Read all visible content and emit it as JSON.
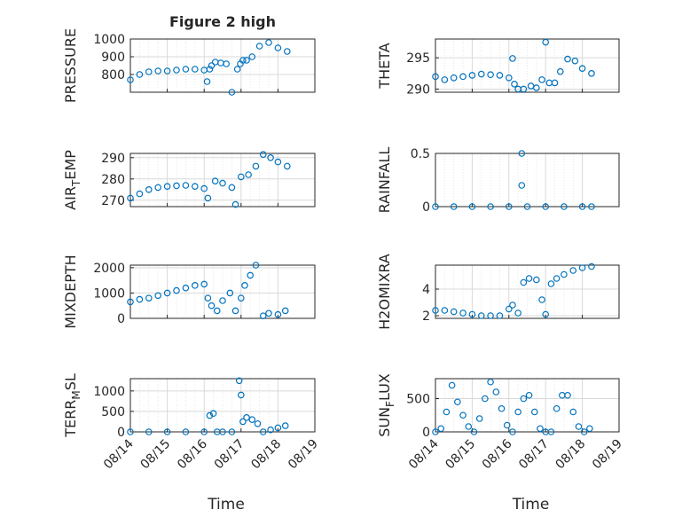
{
  "figure": {
    "title": "Figure 2 high",
    "marker_color": "#0072BD",
    "axis_color": "#262626",
    "grid_color": "#d9d9d9"
  },
  "x_axis": {
    "label": "Time",
    "ticks": [
      "08/14",
      "08/15",
      "08/16",
      "08/17",
      "08/18",
      "08/19"
    ],
    "range_days": [
      "08/14",
      "08/19"
    ]
  },
  "chart_data": [
    {
      "type": "scatter",
      "ylabel": "PRESSURE",
      "ylim": [
        700,
        1000
      ],
      "yticks": [
        800,
        900,
        1000
      ],
      "grid": true,
      "x_days_from_08_14": [
        0.0,
        0.25,
        0.5,
        0.75,
        1.0,
        1.25,
        1.5,
        1.75,
        2.0,
        2.08,
        2.15,
        2.2,
        2.3,
        2.45,
        2.6,
        2.75,
        2.9,
        2.98,
        3.05,
        3.15,
        3.3,
        3.5,
        3.75,
        4.0,
        4.25
      ],
      "y": [
        770,
        800,
        815,
        820,
        820,
        825,
        830,
        830,
        825,
        760,
        830,
        850,
        870,
        865,
        860,
        700,
        830,
        860,
        880,
        880,
        900,
        960,
        980,
        950,
        930
      ]
    },
    {
      "type": "scatter",
      "ylabel": "THETA",
      "ylim": [
        289.5,
        298
      ],
      "yticks": [
        290,
        295
      ],
      "grid": true,
      "x_days_from_08_14": [
        0.0,
        0.25,
        0.5,
        0.75,
        1.0,
        1.25,
        1.5,
        1.75,
        2.0,
        2.1,
        2.15,
        2.25,
        2.4,
        2.6,
        2.75,
        2.9,
        3.0,
        3.1,
        3.25,
        3.4,
        3.6,
        3.8,
        4.0,
        4.25
      ],
      "y": [
        292,
        291.5,
        291.8,
        292,
        292.2,
        292.4,
        292.3,
        292.2,
        291.8,
        294.9,
        290.8,
        290,
        290,
        290.5,
        290.2,
        291.5,
        297.5,
        291,
        291,
        292.8,
        294.8,
        294.5,
        293.3,
        292.5
      ]
    },
    {
      "type": "scatter",
      "ylabel": "AIR_TEMP",
      "ylim": [
        267,
        292
      ],
      "yticks": [
        270,
        280,
        290
      ],
      "grid": true,
      "x_days_from_08_14": [
        0.0,
        0.25,
        0.5,
        0.75,
        1.0,
        1.25,
        1.5,
        1.75,
        2.0,
        2.1,
        2.3,
        2.5,
        2.75,
        2.85,
        3.0,
        3.2,
        3.4,
        3.6,
        3.8,
        4.0,
        4.25
      ],
      "y": [
        271,
        273,
        275,
        276,
        276.5,
        276.8,
        277,
        276.5,
        275.5,
        271,
        279,
        278,
        276,
        268,
        281,
        282,
        286,
        291.5,
        290,
        288,
        286
      ]
    },
    {
      "type": "scatter",
      "ylabel": "RAINFALL",
      "ylim": [
        0,
        0.5
      ],
      "yticks": [
        0,
        0.5
      ],
      "grid": true,
      "x_days_from_08_14": [
        0.0,
        0.5,
        1.0,
        1.5,
        2.0,
        2.5,
        3.0,
        3.5,
        4.0,
        4.25,
        2.35,
        2.35
      ],
      "y": [
        0,
        0,
        0,
        0,
        0,
        0,
        0,
        0,
        0,
        0,
        0.5,
        0.2
      ]
    },
    {
      "type": "scatter",
      "ylabel": "MIXDEPTH",
      "ylim": [
        0,
        2100
      ],
      "yticks": [
        0,
        1000,
        2000
      ],
      "grid": true,
      "x_days_from_08_14": [
        0.0,
        0.25,
        0.5,
        0.75,
        1.0,
        1.25,
        1.5,
        1.75,
        2.0,
        2.1,
        2.2,
        2.35,
        2.5,
        2.7,
        2.85,
        3.0,
        3.1,
        3.25,
        3.4,
        3.6,
        3.75,
        4.0,
        4.2
      ],
      "y": [
        650,
        750,
        800,
        900,
        1000,
        1100,
        1200,
        1300,
        1350,
        800,
        500,
        300,
        700,
        1000,
        300,
        800,
        1300,
        1700,
        2100,
        100,
        200,
        150,
        300
      ]
    },
    {
      "type": "scatter",
      "ylabel": "H2OMIXRA",
      "ylim": [
        1.8,
        5.8
      ],
      "yticks": [
        2,
        4
      ],
      "grid": true,
      "x_days_from_08_14": [
        0.0,
        0.25,
        0.5,
        0.75,
        1.0,
        1.25,
        1.5,
        1.75,
        2.0,
        2.1,
        2.25,
        2.4,
        2.55,
        2.75,
        2.9,
        3.0,
        3.15,
        3.3,
        3.5,
        3.75,
        4.0,
        4.25
      ],
      "y": [
        2.4,
        2.4,
        2.3,
        2.2,
        2.1,
        2.0,
        2.0,
        2.0,
        2.5,
        2.8,
        2.2,
        4.5,
        4.8,
        4.7,
        3.2,
        2.1,
        4.4,
        4.8,
        5.1,
        5.4,
        5.6,
        5.7
      ]
    },
    {
      "type": "scatter",
      "ylabel": "TERR_MSL",
      "ylim": [
        0,
        1300
      ],
      "yticks": [
        0,
        500,
        1000
      ],
      "grid": true,
      "x_days_from_08_14": [
        0.0,
        0.5,
        1.0,
        1.5,
        2.0,
        2.15,
        2.25,
        2.35,
        2.5,
        2.75,
        2.95,
        3.0,
        3.05,
        3.15,
        3.3,
        3.45,
        3.6,
        3.8,
        4.0,
        4.2
      ],
      "y": [
        0,
        0,
        0,
        0,
        0,
        400,
        450,
        0,
        0,
        0,
        1250,
        900,
        250,
        350,
        300,
        200,
        0,
        50,
        100,
        150
      ]
    },
    {
      "type": "scatter",
      "ylabel": "SUN_FLUX",
      "ylim": [
        0,
        800
      ],
      "yticks": [
        0,
        500
      ],
      "grid": true,
      "x_days_from_08_14": [
        0.0,
        0.15,
        0.3,
        0.45,
        0.6,
        0.75,
        0.9,
        1.05,
        1.2,
        1.35,
        1.5,
        1.65,
        1.8,
        1.95,
        2.1,
        2.25,
        2.4,
        2.55,
        2.7,
        2.85,
        3.0,
        3.15,
        3.3,
        3.45,
        3.6,
        3.75,
        3.9,
        4.05,
        4.2
      ],
      "y": [
        0,
        50,
        300,
        700,
        450,
        250,
        80,
        0,
        200,
        500,
        750,
        600,
        350,
        100,
        0,
        300,
        500,
        550,
        300,
        50,
        0,
        0,
        350,
        550,
        550,
        300,
        80,
        0,
        50
      ]
    }
  ]
}
